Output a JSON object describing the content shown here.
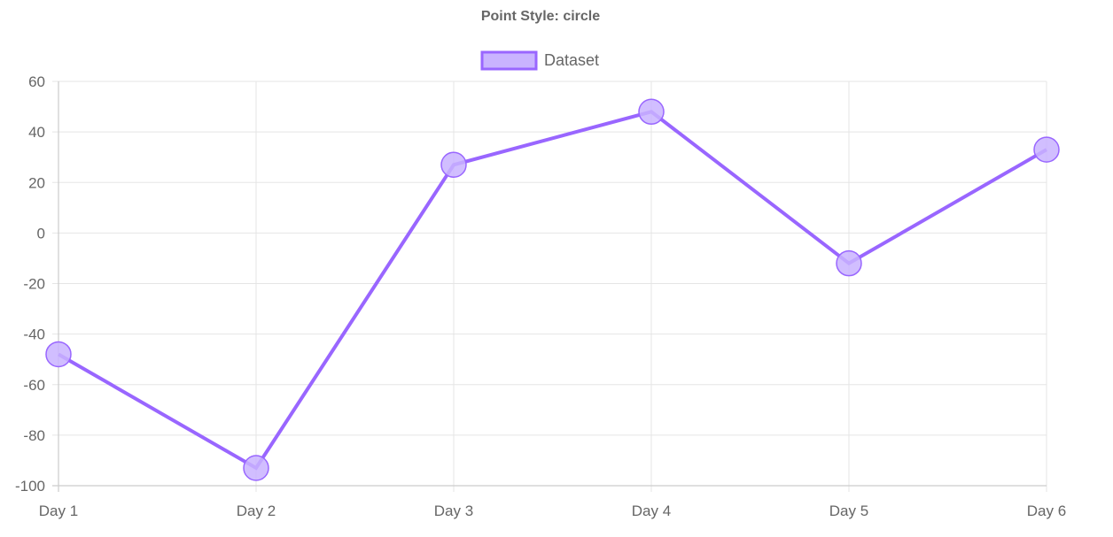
{
  "chart_data": {
    "type": "line",
    "title": "Point Style: circle",
    "categories": [
      "Day 1",
      "Day 2",
      "Day 3",
      "Day 4",
      "Day 5",
      "Day 6"
    ],
    "series": [
      {
        "name": "Dataset",
        "values": [
          -48,
          -93,
          27,
          48,
          -12,
          33
        ],
        "color": "#9966ff",
        "fill": "#c9b3ff"
      }
    ],
    "ylim": [
      -100,
      60
    ],
    "yticks": [
      60,
      40,
      20,
      0,
      -20,
      -40,
      -60,
      -80,
      -100
    ],
    "ytick_labels": [
      "60",
      "40",
      "20",
      "0",
      "-20",
      "-40",
      "-60",
      "-80",
      "-100"
    ],
    "point_style": "circle",
    "grid": true,
    "legend_position": "top"
  }
}
